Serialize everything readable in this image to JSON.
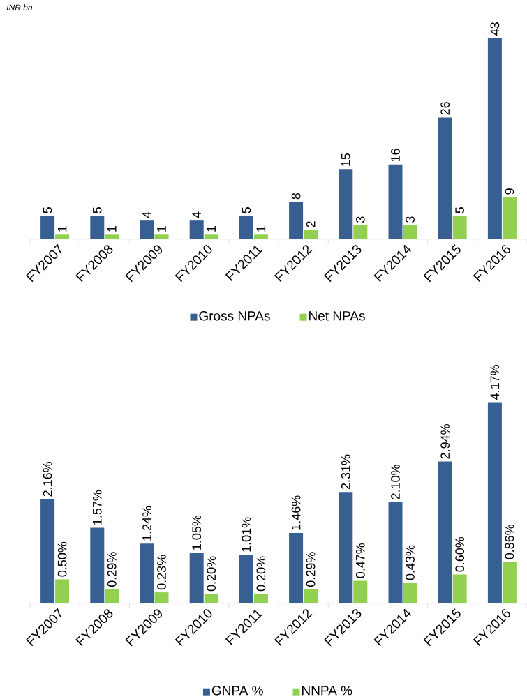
{
  "chart_data": [
    {
      "type": "bar",
      "ylabel": "INR bn",
      "categories": [
        "FY2007",
        "FY2008",
        "FY2009",
        "FY2010",
        "FY2011",
        "FY2012",
        "FY2013",
        "FY2014",
        "FY2015",
        "FY2016"
      ],
      "series": [
        {
          "name": "Gross NPAs",
          "color": "#375f91",
          "values": [
            5,
            5,
            4,
            4,
            5,
            8,
            15,
            16,
            26,
            43
          ]
        },
        {
          "name": "Net NPAs",
          "color": "#92d050",
          "values": [
            1,
            1,
            1,
            1,
            1,
            2,
            3,
            3,
            5,
            9
          ]
        }
      ],
      "data_labels": true,
      "legend": "bottom"
    },
    {
      "type": "bar",
      "categories": [
        "FY2007",
        "FY2008",
        "FY2009",
        "FY2010",
        "FY2011",
        "FY2012",
        "FY2013",
        "FY2014",
        "FY2015",
        "FY2016"
      ],
      "series": [
        {
          "name": "GNPA %",
          "color": "#375f91",
          "values": [
            2.16,
            1.57,
            1.24,
            1.05,
            1.01,
            1.46,
            2.31,
            2.1,
            2.94,
            4.17
          ],
          "value_labels": [
            "2.16%",
            "1.57%",
            "1.24%",
            "1.05%",
            "1.01%",
            "1.46%",
            "2.31%",
            "2.10%",
            "2.94%",
            "4.17%"
          ]
        },
        {
          "name": "NNPA %",
          "color": "#92d050",
          "values": [
            0.5,
            0.29,
            0.23,
            0.2,
            0.2,
            0.29,
            0.47,
            0.43,
            0.6,
            0.86
          ],
          "value_labels": [
            "0.50%",
            "0.29%",
            "0.23%",
            "0.20%",
            "0.20%",
            "0.29%",
            "0.47%",
            "0.43%",
            "0.60%",
            "0.86%"
          ]
        }
      ],
      "legend": "bottom"
    }
  ]
}
